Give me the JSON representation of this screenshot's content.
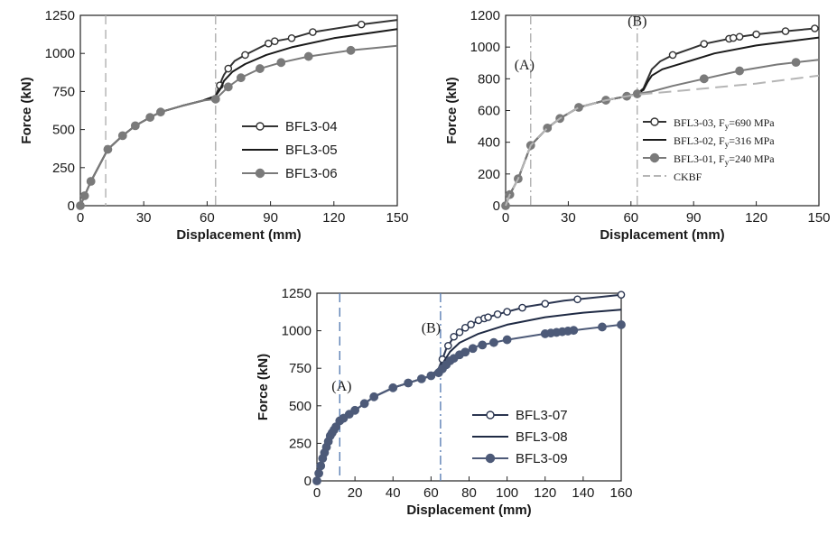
{
  "chart_data": [
    {
      "type": "line",
      "xlabel": "Displacement (mm)",
      "ylabel": "Force (kN)",
      "xlim": [
        0,
        150
      ],
      "ylim": [
        0,
        1250
      ],
      "xticks": [
        0,
        30,
        60,
        90,
        120,
        150
      ],
      "yticks": [
        0,
        250,
        500,
        750,
        1000,
        1250
      ],
      "legend_position": "center-right",
      "vlines": [
        {
          "x": 12,
          "style": "dashed"
        },
        {
          "x": 64,
          "style": "dashdot"
        }
      ],
      "annotations": [],
      "series": [
        {
          "name": "BFL3-04",
          "marker": "open-circle",
          "color": "#333333",
          "x": [
            0,
            2,
            5,
            13,
            20,
            26,
            33,
            38,
            48,
            58,
            64,
            66,
            67,
            68,
            70,
            73,
            78,
            88,
            92,
            100,
            110,
            133,
            150
          ],
          "y": [
            0,
            65,
            160,
            370,
            460,
            525,
            580,
            615,
            655,
            690,
            720,
            790,
            830,
            860,
            900,
            950,
            990,
            1060,
            1080,
            1100,
            1140,
            1190,
            1220
          ],
          "markers_x": [
            66,
            70,
            78,
            89,
            92,
            100,
            110,
            133
          ]
        },
        {
          "name": "BFL3-05",
          "marker": "none",
          "color": "#1a1a1a",
          "x": [
            0,
            2,
            5,
            13,
            20,
            26,
            33,
            38,
            48,
            58,
            64,
            66,
            68,
            72,
            78,
            88,
            100,
            120,
            150
          ],
          "y": [
            0,
            65,
            160,
            370,
            460,
            525,
            580,
            615,
            655,
            690,
            720,
            760,
            820,
            880,
            930,
            990,
            1040,
            1100,
            1160
          ]
        },
        {
          "name": "BFL3-06",
          "marker": "filled-circle",
          "color": "#7a7a7a",
          "x": [
            0,
            2,
            5,
            13,
            20,
            26,
            33,
            38,
            48,
            58,
            64,
            67,
            70,
            76,
            85,
            95,
            108,
            128,
            150
          ],
          "y": [
            0,
            65,
            160,
            370,
            460,
            525,
            580,
            615,
            655,
            690,
            700,
            740,
            780,
            840,
            900,
            940,
            980,
            1020,
            1050
          ],
          "markers_x": [
            0,
            2,
            5,
            13,
            20,
            26,
            33,
            38,
            64,
            70,
            76,
            85,
            95,
            108,
            128
          ]
        }
      ]
    },
    {
      "type": "line",
      "xlabel": "Displacement (mm)",
      "ylabel": "Force (kN)",
      "xlim": [
        0,
        150
      ],
      "ylim": [
        0,
        1200
      ],
      "xticks": [
        0,
        30,
        60,
        90,
        120,
        150
      ],
      "yticks": [
        0,
        200,
        400,
        600,
        800,
        1000,
        1200
      ],
      "legend_position": "lower-right",
      "vlines": [
        {
          "x": 12,
          "style": "dashdot"
        },
        {
          "x": 63,
          "style": "dashdot"
        }
      ],
      "annotations": [
        {
          "text": "(A)",
          "x": 9,
          "y": 860
        },
        {
          "text": "(B)",
          "x": 63,
          "y": 1135
        }
      ],
      "legend_labels": [
        {
          "main": "BFL3-03, F",
          "sub": "y",
          "rest": "=690 MPa"
        },
        {
          "main": "BFL3-02, F",
          "sub": "y",
          "rest": "=316 MPa"
        },
        {
          "main": "BFL3-01, F",
          "sub": "y",
          "rest": "=240 MPa"
        },
        {
          "main": "CKBF",
          "sub": "",
          "rest": ""
        }
      ],
      "series": [
        {
          "name": "BFL3-03",
          "marker": "open-circle",
          "color": "#333333",
          "x": [
            0,
            2,
            6,
            12,
            20,
            26,
            35,
            48,
            58,
            63,
            66,
            68,
            70,
            74,
            80,
            95,
            108,
            112,
            120,
            134,
            150
          ],
          "y": [
            0,
            70,
            170,
            380,
            490,
            550,
            620,
            665,
            690,
            705,
            740,
            800,
            860,
            910,
            950,
            1020,
            1055,
            1065,
            1080,
            1100,
            1120
          ],
          "markers_x": [
            80,
            95,
            107,
            109,
            112,
            120,
            134,
            148
          ]
        },
        {
          "name": "BFL3-02",
          "marker": "none",
          "color": "#1a1a1a",
          "x": [
            0,
            2,
            6,
            12,
            20,
            26,
            35,
            48,
            58,
            63,
            66,
            68,
            70,
            75,
            85,
            100,
            120,
            150
          ],
          "y": [
            0,
            70,
            170,
            380,
            490,
            550,
            620,
            665,
            690,
            705,
            730,
            780,
            820,
            860,
            900,
            960,
            1010,
            1060
          ]
        },
        {
          "name": "BFL3-01",
          "marker": "filled-circle",
          "color": "#7a7a7a",
          "x": [
            0,
            2,
            6,
            12,
            20,
            26,
            35,
            48,
            58,
            63,
            70,
            80,
            95,
            112,
            130,
            150
          ],
          "y": [
            0,
            70,
            170,
            380,
            490,
            550,
            620,
            665,
            690,
            705,
            720,
            755,
            800,
            850,
            890,
            920
          ],
          "markers_x": [
            0,
            2,
            6,
            12,
            20,
            26,
            35,
            48,
            58,
            63,
            95,
            112,
            139
          ]
        },
        {
          "name": "CKBF",
          "marker": "none",
          "color": "#b5b5b5",
          "dashed": true,
          "x": [
            0,
            2,
            6,
            12,
            20,
            26,
            35,
            48,
            58,
            63,
            80,
            100,
            120,
            150
          ],
          "y": [
            0,
            70,
            170,
            380,
            490,
            550,
            620,
            665,
            690,
            700,
            720,
            745,
            770,
            820
          ]
        }
      ]
    },
    {
      "type": "line",
      "xlabel": "Displacement (mm)",
      "ylabel": "Force (kN)",
      "xlim": [
        0,
        160
      ],
      "ylim": [
        0,
        1250
      ],
      "xticks": [
        0,
        20,
        40,
        60,
        80,
        100,
        120,
        140,
        160
      ],
      "yticks": [
        0,
        250,
        500,
        750,
        1000,
        1250
      ],
      "legend_position": "lower-right",
      "vlines": [
        {
          "x": 12,
          "style": "dashed",
          "color": "#5b7fb5"
        },
        {
          "x": 65,
          "style": "dashdot",
          "color": "#5b7fb5"
        }
      ],
      "annotations": [
        {
          "text": "(A)",
          "x": 13,
          "y": 600
        },
        {
          "text": "(B)",
          "x": 60,
          "y": 990
        }
      ],
      "series": [
        {
          "name": "BFL3-07",
          "marker": "open-circle",
          "color": "#2a3550",
          "x": [
            0,
            3,
            7,
            12,
            20,
            30,
            40,
            50,
            60,
            64,
            66,
            68,
            72,
            78,
            85,
            95,
            110,
            130,
            160
          ],
          "y": [
            0,
            150,
            300,
            400,
            470,
            560,
            620,
            660,
            700,
            750,
            810,
            880,
            960,
            1020,
            1070,
            1110,
            1160,
            1200,
            1240
          ],
          "markers_x": [
            66,
            69,
            72,
            75,
            78,
            81,
            85,
            88,
            90,
            95,
            100,
            108,
            120,
            137,
            160
          ]
        },
        {
          "name": "BFL3-08",
          "marker": "none",
          "color": "#1f2a44",
          "x": [
            0,
            3,
            7,
            12,
            20,
            30,
            40,
            50,
            60,
            64,
            67,
            70,
            75,
            85,
            100,
            120,
            140,
            160
          ],
          "y": [
            0,
            150,
            300,
            400,
            470,
            560,
            620,
            660,
            700,
            740,
            800,
            860,
            920,
            980,
            1040,
            1090,
            1120,
            1140
          ]
        },
        {
          "name": "BFL3-09",
          "marker": "filled-circle",
          "color": "#4d5a78",
          "x": [
            0,
            3,
            7,
            12,
            20,
            30,
            40,
            50,
            60,
            64,
            67,
            70,
            75,
            85,
            100,
            120,
            140,
            160
          ],
          "y": [
            0,
            150,
            300,
            400,
            470,
            560,
            620,
            660,
            700,
            720,
            760,
            800,
            840,
            900,
            940,
            980,
            1010,
            1040
          ],
          "markers_x": [
            0,
            1,
            2,
            3,
            4,
            5,
            6,
            7,
            8,
            9,
            10,
            12,
            14,
            17,
            20,
            25,
            30,
            40,
            48,
            55,
            60,
            64,
            66,
            68,
            70,
            72,
            75,
            78,
            82,
            87,
            93,
            100,
            120,
            123,
            126,
            129,
            132,
            135,
            150,
            160
          ]
        }
      ]
    }
  ]
}
